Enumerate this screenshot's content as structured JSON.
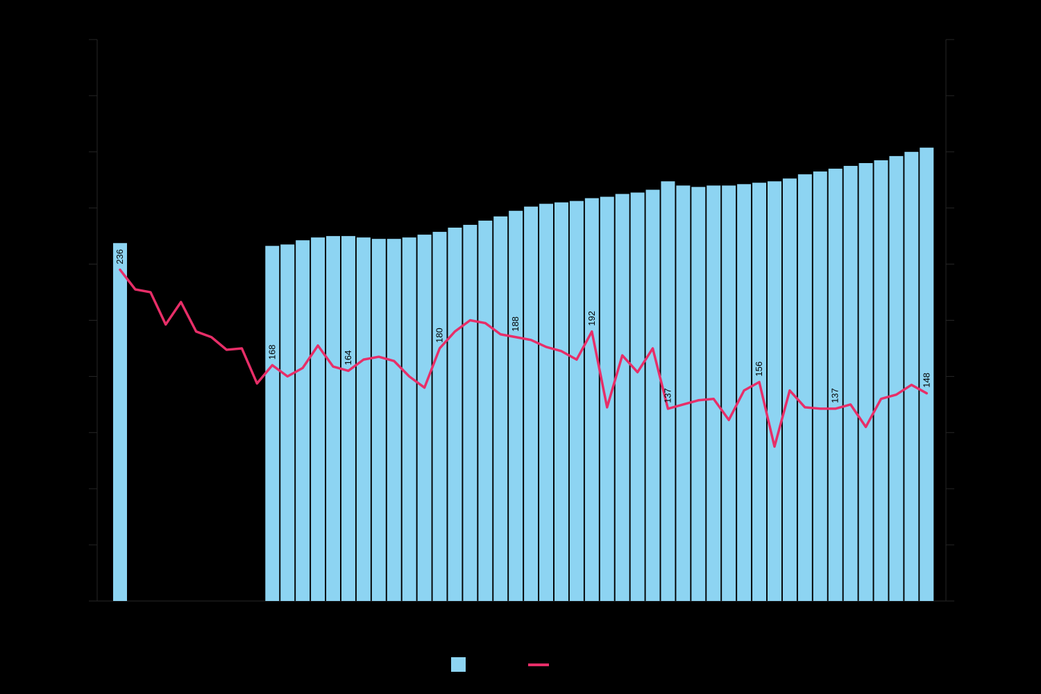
{
  "chart_data": {
    "type": "bar",
    "subtype": "combo-bar-line",
    "n_periods": 54,
    "ylim": [
      0,
      400
    ],
    "y_ticks": [
      0,
      40,
      80,
      120,
      160,
      200,
      240,
      280,
      320,
      360,
      400
    ],
    "grid": false,
    "axis_tick_labels_visible": false,
    "legend_position": "bottom-center",
    "legend_labels_visible": false,
    "colors": {
      "background": "#000000",
      "bar": "#8DD4F2",
      "line": "#E72E68",
      "label_text": "#000000",
      "axis": "#262626"
    },
    "series": [
      {
        "name": "bars",
        "type": "bar",
        "color": "#8DD4F2",
        "values": [
          255,
          null,
          null,
          null,
          null,
          null,
          null,
          null,
          null,
          null,
          253,
          254,
          257,
          259,
          260,
          260,
          259,
          258,
          258,
          259,
          261,
          263,
          266,
          268,
          271,
          274,
          278,
          281,
          283,
          284,
          285,
          287,
          288,
          290,
          291,
          293,
          299,
          296,
          295,
          296,
          296,
          297,
          298,
          299,
          301,
          304,
          306,
          308,
          310,
          312,
          314,
          317,
          320,
          323
        ]
      },
      {
        "name": "line",
        "type": "line",
        "color": "#E72E68",
        "values": [
          236,
          222,
          220,
          197,
          213,
          192,
          188,
          179,
          180,
          155,
          168,
          160,
          166,
          182,
          167,
          164,
          172,
          174,
          171,
          160,
          152,
          180,
          192,
          200,
          198,
          190,
          188,
          186,
          181,
          178,
          172,
          192,
          138,
          175,
          163,
          180,
          137,
          140,
          143,
          144,
          129,
          150,
          156,
          110,
          150,
          138,
          137,
          137,
          140,
          124,
          144,
          147,
          154,
          148
        ]
      }
    ],
    "data_labels": [
      {
        "index": 0,
        "text": "236"
      },
      {
        "index": 10,
        "text": "168"
      },
      {
        "index": 15,
        "text": "164"
      },
      {
        "index": 21,
        "text": "180"
      },
      {
        "index": 26,
        "text": "188"
      },
      {
        "index": 31,
        "text": "192"
      },
      {
        "index": 36,
        "text": "137"
      },
      {
        "index": 42,
        "text": "156"
      },
      {
        "index": 47,
        "text": "137"
      },
      {
        "index": 53,
        "text": "148"
      }
    ]
  }
}
